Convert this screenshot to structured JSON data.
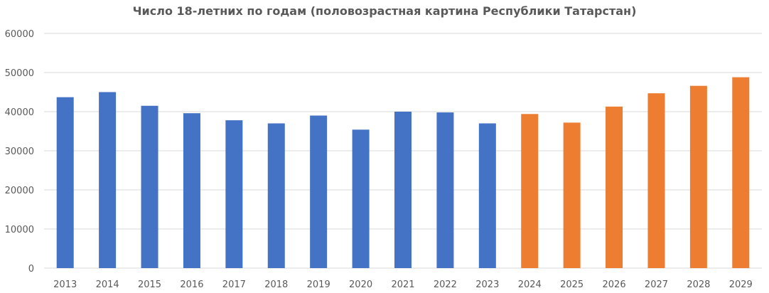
{
  "chart_data": {
    "type": "bar",
    "title": "Число 18-летних по годам (половозрастная картина Республики Татарстан)",
    "categories": [
      "2013",
      "2014",
      "2015",
      "2016",
      "2017",
      "2018",
      "2019",
      "2020",
      "2021",
      "2022",
      "2023",
      "2024",
      "2025",
      "2026",
      "2027",
      "2028",
      "2029"
    ],
    "values": [
      43700,
      45000,
      41500,
      39600,
      37800,
      37000,
      39000,
      35400,
      40000,
      39800,
      37000,
      39400,
      37200,
      41300,
      44700,
      46600,
      48800
    ],
    "bar_colors": [
      "#4472c4",
      "#4472c4",
      "#4472c4",
      "#4472c4",
      "#4472c4",
      "#4472c4",
      "#4472c4",
      "#4472c4",
      "#4472c4",
      "#4472c4",
      "#4472c4",
      "#ed7d31",
      "#ed7d31",
      "#ed7d31",
      "#ed7d31",
      "#ed7d31",
      "#ed7d31"
    ],
    "ylim": [
      0,
      60000
    ],
    "y_ticks": [
      "0",
      "10000",
      "20000",
      "30000",
      "40000",
      "50000",
      "60000"
    ],
    "grid": true,
    "xlabel": "",
    "ylabel": ""
  }
}
